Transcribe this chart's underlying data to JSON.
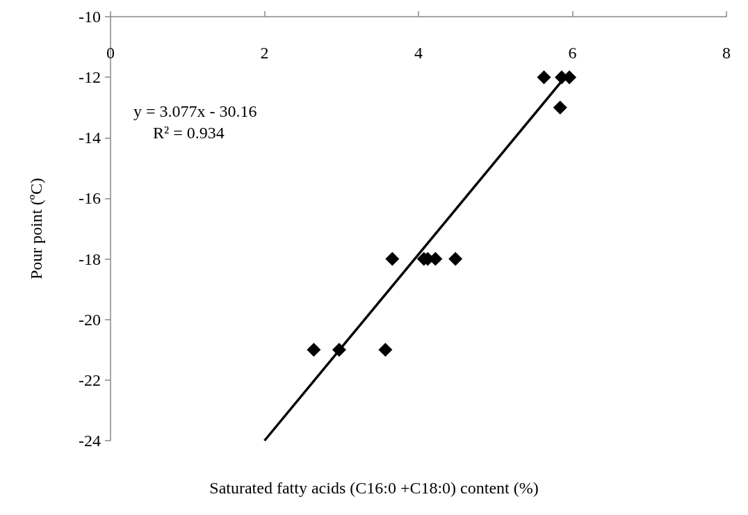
{
  "chart_data": {
    "type": "scatter",
    "xlabel": "Saturated fatty acids (C16:0 +C18:0) content (%)",
    "ylabel": "Pour point (ºC)",
    "annotations": [
      "y = 3.077x - 30.16",
      "R² = 0.934"
    ],
    "xlim": [
      0,
      8
    ],
    "xticks": [
      0,
      2,
      4,
      6,
      8
    ],
    "ylim": [
      -24,
      -10
    ],
    "yticks": [
      -24,
      -22,
      -20,
      -18,
      -16,
      -14,
      -12,
      -10
    ],
    "grid": false,
    "marker": "diamond",
    "series": [
      {
        "color": "#000000",
        "x": [
          2.64,
          2.97,
          3.57,
          3.66,
          4.07,
          4.12,
          4.22,
          4.48,
          5.63,
          5.86,
          5.96,
          5.84
        ],
        "values": [
          -21,
          -21,
          -21,
          -18,
          -18,
          -18,
          -18,
          -18,
          -12,
          -12,
          -12,
          -13
        ]
      },
      {
        "type": "line",
        "color": "#000000",
        "line_style": "solid",
        "marker": "none",
        "x": [
          2.0,
          5.85
        ],
        "values": [
          -24.0,
          -12.16
        ]
      }
    ]
  }
}
